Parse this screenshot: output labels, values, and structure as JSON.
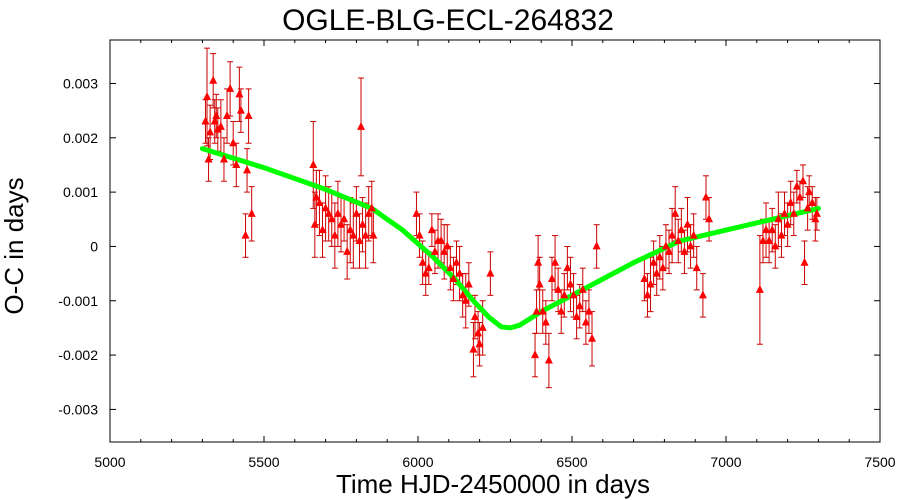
{
  "chart_data": {
    "type": "scatter",
    "title": "OGLE-BLG-ECL-264832",
    "xlabel": "Time HJD-2450000 in days",
    "ylabel": "O-C in days",
    "xlim": [
      5000,
      7500
    ],
    "ylim": [
      -0.0036,
      0.0038
    ],
    "x_ticks": [
      5000,
      5500,
      6000,
      6500,
      7000,
      7500
    ],
    "x_tick_labels": [
      "5000",
      "5500",
      "6000",
      "6500",
      "7000",
      "7500"
    ],
    "y_ticks": [
      0.003,
      0.002,
      0.001,
      0,
      -0.001,
      -0.002,
      -0.003
    ],
    "y_tick_labels": [
      "0.003",
      "0.002",
      "0.001",
      "0",
      "-0.001",
      "-0.002",
      "-0.003"
    ],
    "grid": false,
    "colors": {
      "points": "#ff0000",
      "error_bars": "#cc0000",
      "fit": "#00ff00"
    },
    "series": [
      {
        "kind": "errorbar",
        "marker": "triangle",
        "points": [
          {
            "x": 5310,
            "y": 0.0023,
            "err": 0.0004
          },
          {
            "x": 5315,
            "y": 0.00275,
            "err": 0.0009
          },
          {
            "x": 5320,
            "y": 0.0016,
            "err": 0.0004
          },
          {
            "x": 5325,
            "y": 0.0021,
            "err": 0.0005
          },
          {
            "x": 5335,
            "y": 0.00305,
            "err": 0.0005
          },
          {
            "x": 5340,
            "y": 0.0023,
            "err": 0.0004
          },
          {
            "x": 5345,
            "y": 0.0024,
            "err": 0.0004
          },
          {
            "x": 5350,
            "y": 0.00215,
            "err": 0.0004
          },
          {
            "x": 5360,
            "y": 0.0022,
            "err": 0.0005
          },
          {
            "x": 5370,
            "y": 0.0016,
            "err": 0.0004
          },
          {
            "x": 5380,
            "y": 0.0024,
            "err": 0.0005
          },
          {
            "x": 5390,
            "y": 0.0029,
            "err": 0.0005
          },
          {
            "x": 5400,
            "y": 0.0019,
            "err": 0.0004
          },
          {
            "x": 5410,
            "y": 0.0015,
            "err": 0.0004
          },
          {
            "x": 5420,
            "y": 0.0028,
            "err": 0.0005
          },
          {
            "x": 5425,
            "y": 0.0025,
            "err": 0.0004
          },
          {
            "x": 5440,
            "y": 0.0002,
            "err": 0.0004
          },
          {
            "x": 5445,
            "y": 0.0014,
            "err": 0.0004
          },
          {
            "x": 5450,
            "y": 0.0024,
            "err": 0.0005
          },
          {
            "x": 5460,
            "y": 0.0006,
            "err": 0.0005
          },
          {
            "x": 5660,
            "y": 0.0015,
            "err": 0.0008
          },
          {
            "x": 5665,
            "y": 0.0004,
            "err": 0.0006
          },
          {
            "x": 5670,
            "y": 0.0009,
            "err": 0.0005
          },
          {
            "x": 5680,
            "y": 0.0008,
            "err": 0.0006
          },
          {
            "x": 5690,
            "y": 0.0003,
            "err": 0.0005
          },
          {
            "x": 5700,
            "y": 0.0007,
            "err": 0.0006
          },
          {
            "x": 5710,
            "y": 0.0006,
            "err": 0.0005
          },
          {
            "x": 5720,
            "y": 0.0005,
            "err": 0.0005
          },
          {
            "x": 5730,
            "y": 0.0002,
            "err": 0.0006
          },
          {
            "x": 5740,
            "y": 0.0006,
            "err": 0.0006
          },
          {
            "x": 5750,
            "y": 0.0004,
            "err": 0.0005
          },
          {
            "x": 5760,
            "y": 0.0005,
            "err": 0.0004
          },
          {
            "x": 5770,
            "y": -0.0001,
            "err": 0.0005
          },
          {
            "x": 5780,
            "y": 0.0003,
            "err": 0.0006
          },
          {
            "x": 5790,
            "y": 0.0002,
            "err": 0.0006
          },
          {
            "x": 5800,
            "y": 0.0006,
            "err": 0.0005
          },
          {
            "x": 5810,
            "y": 0.0001,
            "err": 0.0005
          },
          {
            "x": 5815,
            "y": 0.0022,
            "err": 0.0009
          },
          {
            "x": 5820,
            "y": 0.0004,
            "err": 0.0005
          },
          {
            "x": 5830,
            "y": 0.0002,
            "err": 0.0006
          },
          {
            "x": 5840,
            "y": 0.0006,
            "err": 0.0005
          },
          {
            "x": 5850,
            "y": 0.0007,
            "err": 0.0005
          },
          {
            "x": 5855,
            "y": 0.0002,
            "err": 0.0005
          },
          {
            "x": 5995,
            "y": 0.0006,
            "err": 0.0004
          },
          {
            "x": 6005,
            "y": 0.0002,
            "err": 0.0004
          },
          {
            "x": 6015,
            "y": -0.0003,
            "err": 0.0004
          },
          {
            "x": 6025,
            "y": -0.0005,
            "err": 0.0004
          },
          {
            "x": 6035,
            "y": -0.0004,
            "err": 0.0003
          },
          {
            "x": 6045,
            "y": 0.0003,
            "err": 0.0003
          },
          {
            "x": 6055,
            "y": -0.0001,
            "err": 0.0004
          },
          {
            "x": 6065,
            "y": 0.0001,
            "err": 0.0005
          },
          {
            "x": 6075,
            "y": 0.0001,
            "err": 0.0004
          },
          {
            "x": 6085,
            "y": -0.0001,
            "err": 0.0005
          },
          {
            "x": 6095,
            "y": 0.0,
            "err": 0.0004
          },
          {
            "x": 6105,
            "y": -0.0004,
            "err": 0.0004
          },
          {
            "x": 6115,
            "y": -0.0006,
            "err": 0.0004
          },
          {
            "x": 6125,
            "y": -0.0003,
            "err": 0.0004
          },
          {
            "x": 6135,
            "y": -0.0005,
            "err": 0.0005
          },
          {
            "x": 6145,
            "y": -0.0009,
            "err": 0.0004
          },
          {
            "x": 6155,
            "y": -0.001,
            "err": 0.0005
          },
          {
            "x": 6165,
            "y": -0.0007,
            "err": 0.0004
          },
          {
            "x": 6180,
            "y": -0.0019,
            "err": 0.0005
          },
          {
            "x": 6185,
            "y": -0.0013,
            "err": 0.0004
          },
          {
            "x": 6195,
            "y": -0.0016,
            "err": 0.0004
          },
          {
            "x": 6200,
            "y": -0.0018,
            "err": 0.0004
          },
          {
            "x": 6210,
            "y": -0.0015,
            "err": 0.0005
          },
          {
            "x": 6235,
            "y": -0.0005,
            "err": 0.0004
          },
          {
            "x": 6380,
            "y": -0.002,
            "err": 0.0004
          },
          {
            "x": 6385,
            "y": -0.0012,
            "err": 0.0004
          },
          {
            "x": 6390,
            "y": -0.0003,
            "err": 0.0005
          },
          {
            "x": 6395,
            "y": -0.0007,
            "err": 0.0005
          },
          {
            "x": 6405,
            "y": -0.0012,
            "err": 0.0004
          },
          {
            "x": 6415,
            "y": -0.0014,
            "err": 0.0004
          },
          {
            "x": 6425,
            "y": -0.0021,
            "err": 0.0005
          },
          {
            "x": 6435,
            "y": -0.0006,
            "err": 0.0004
          },
          {
            "x": 6445,
            "y": -0.0003,
            "err": 0.0005
          },
          {
            "x": 6455,
            "y": -0.0008,
            "err": 0.0004
          },
          {
            "x": 6465,
            "y": -0.0012,
            "err": 0.0004
          },
          {
            "x": 6475,
            "y": -0.0009,
            "err": 0.0004
          },
          {
            "x": 6485,
            "y": -0.0004,
            "err": 0.0004
          },
          {
            "x": 6495,
            "y": -0.0007,
            "err": 0.0005
          },
          {
            "x": 6505,
            "y": -0.0009,
            "err": 0.0004
          },
          {
            "x": 6515,
            "y": -0.0013,
            "err": 0.0004
          },
          {
            "x": 6525,
            "y": -0.0011,
            "err": 0.0004
          },
          {
            "x": 6535,
            "y": -0.0008,
            "err": 0.0004
          },
          {
            "x": 6545,
            "y": -0.0014,
            "err": 0.0004
          },
          {
            "x": 6555,
            "y": -0.0012,
            "err": 0.0004
          },
          {
            "x": 6565,
            "y": -0.0017,
            "err": 0.0005
          },
          {
            "x": 6580,
            "y": 0.0,
            "err": 0.0004
          },
          {
            "x": 6735,
            "y": -0.0006,
            "err": 0.0004
          },
          {
            "x": 6745,
            "y": -0.0009,
            "err": 0.0004
          },
          {
            "x": 6755,
            "y": -0.0007,
            "err": 0.0005
          },
          {
            "x": 6765,
            "y": -0.0003,
            "err": 0.0004
          },
          {
            "x": 6775,
            "y": -0.0005,
            "err": 0.0004
          },
          {
            "x": 6785,
            "y": -0.0002,
            "err": 0.0004
          },
          {
            "x": 6795,
            "y": -0.0004,
            "err": 0.0004
          },
          {
            "x": 6805,
            "y": 0.0,
            "err": 0.0004
          },
          {
            "x": 6815,
            "y": -0.0001,
            "err": 0.0004
          },
          {
            "x": 6825,
            "y": 0.0002,
            "err": 0.0005
          },
          {
            "x": 6835,
            "y": 0.0006,
            "err": 0.0005
          },
          {
            "x": 6845,
            "y": 0.0001,
            "err": 0.0004
          },
          {
            "x": 6855,
            "y": 0.0003,
            "err": 0.0004
          },
          {
            "x": 6865,
            "y": -0.0001,
            "err": 0.0004
          },
          {
            "x": 6875,
            "y": 0.0004,
            "err": 0.0005
          },
          {
            "x": 6885,
            "y": 0.0,
            "err": 0.0004
          },
          {
            "x": 6895,
            "y": 0.0002,
            "err": 0.0004
          },
          {
            "x": 6905,
            "y": -0.0004,
            "err": 0.0004
          },
          {
            "x": 6925,
            "y": -0.0009,
            "err": 0.0004
          },
          {
            "x": 6935,
            "y": 0.0009,
            "err": 0.0004
          },
          {
            "x": 6945,
            "y": 0.0005,
            "err": 0.0004
          },
          {
            "x": 7110,
            "y": -0.0008,
            "err": 0.001
          },
          {
            "x": 7120,
            "y": 0.0001,
            "err": 0.0004
          },
          {
            "x": 7130,
            "y": 0.0003,
            "err": 0.0005
          },
          {
            "x": 7140,
            "y": 0.0001,
            "err": 0.0004
          },
          {
            "x": 7150,
            "y": 0.0003,
            "err": 0.0004
          },
          {
            "x": 7160,
            "y": 0.0,
            "err": 0.0004
          },
          {
            "x": 7170,
            "y": 0.0005,
            "err": 0.0005
          },
          {
            "x": 7180,
            "y": 0.0002,
            "err": 0.0004
          },
          {
            "x": 7190,
            "y": 0.0006,
            "err": 0.0004
          },
          {
            "x": 7200,
            "y": 0.0004,
            "err": 0.0004
          },
          {
            "x": 7210,
            "y": 0.0008,
            "err": 0.0004
          },
          {
            "x": 7220,
            "y": 0.0006,
            "err": 0.0004
          },
          {
            "x": 7230,
            "y": 0.0011,
            "err": 0.0003
          },
          {
            "x": 7240,
            "y": 0.0009,
            "err": 0.0003
          },
          {
            "x": 7250,
            "y": 0.0012,
            "err": 0.0003
          },
          {
            "x": 7255,
            "y": -0.0003,
            "err": 0.0004
          },
          {
            "x": 7265,
            "y": 0.0007,
            "err": 0.0004
          },
          {
            "x": 7270,
            "y": 0.001,
            "err": 0.0003
          },
          {
            "x": 7280,
            "y": 0.0008,
            "err": 0.0003
          },
          {
            "x": 7290,
            "y": 0.0005,
            "err": 0.0004
          },
          {
            "x": 7295,
            "y": 0.0006,
            "err": 0.0003
          }
        ]
      },
      {
        "kind": "line",
        "x": [
          5300,
          5500,
          5700,
          5850,
          5950,
          6050,
          6120,
          6180,
          6230,
          6270,
          6300,
          6330,
          6400,
          6500,
          6600,
          6700,
          6850,
          7000,
          7150,
          7300
        ],
        "y": [
          0.0018,
          0.00145,
          0.00105,
          0.0007,
          0.0003,
          -0.0002,
          -0.0006,
          -0.001,
          -0.0013,
          -0.00148,
          -0.0015,
          -0.00145,
          -0.0012,
          -0.0009,
          -0.0006,
          -0.0003,
          0.0001,
          0.0003,
          0.0005,
          0.0007
        ]
      }
    ]
  }
}
